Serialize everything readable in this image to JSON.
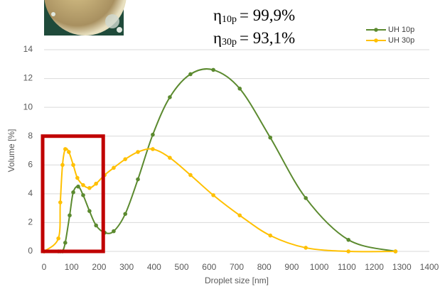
{
  "chart_data": {
    "type": "line",
    "x_label": "Droplet size [nm]",
    "y_label": "Volume [%]",
    "xlim": [
      0,
      1400
    ],
    "xticks": [
      0,
      100,
      200,
      300,
      400,
      500,
      600,
      700,
      800,
      900,
      1000,
      1100,
      1200,
      1300,
      1400
    ],
    "ylim": [
      0,
      14
    ],
    "yticks": [
      0,
      2,
      4,
      6,
      8,
      10,
      12,
      14
    ],
    "grid": true,
    "legend": "upper right",
    "annotations": [
      {
        "symbol": "η",
        "subscript": "10p",
        "text": "= 99,9%"
      },
      {
        "symbol": "η",
        "subscript": "30p",
        "text": "= 93,1%"
      }
    ],
    "highlight": {
      "xlim": [
        0,
        215
      ],
      "ylim": [
        0,
        8
      ],
      "color": "#c00000"
    },
    "series": [
      {
        "name": "UH 10p",
        "color": "#5b8a2f",
        "x": [
          0,
          52,
          59,
          67,
          77,
          93,
          106,
          124,
          142,
          165,
          189,
          220,
          253,
          295,
          341,
          395,
          457,
          532,
          615,
          711,
          822,
          951,
          1106,
          1277
        ],
        "values": [
          0,
          0,
          0,
          0,
          0.6,
          2.5,
          4.1,
          4.5,
          3.9,
          2.8,
          1.8,
          1.3,
          1.4,
          2.6,
          5.0,
          8.1,
          10.7,
          12.3,
          12.6,
          11.3,
          7.9,
          3.7,
          0.8,
          0
        ]
      },
      {
        "name": "UH 30p",
        "color": "#ffc000",
        "x": [
          0,
          52,
          59,
          67,
          77,
          90,
          106,
          121,
          142,
          165,
          189,
          220,
          253,
          295,
          341,
          395,
          457,
          532,
          615,
          711,
          822,
          951,
          1106,
          1277
        ],
        "values": [
          0,
          0.9,
          3.4,
          6.0,
          7.1,
          6.9,
          6.0,
          5.1,
          4.6,
          4.4,
          4.7,
          5.3,
          5.8,
          6.4,
          6.9,
          7.1,
          6.5,
          5.3,
          3.9,
          2.5,
          1.1,
          0.25,
          0,
          0
        ]
      }
    ]
  }
}
